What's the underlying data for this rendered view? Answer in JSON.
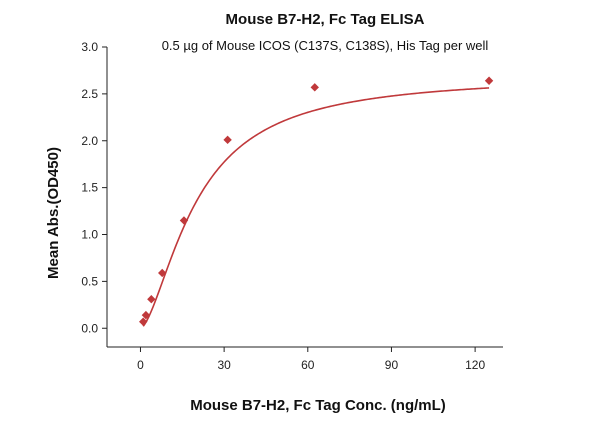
{
  "chart_data": {
    "type": "scatter",
    "title": "Mouse B7-H2, Fc Tag ELISA",
    "subtitle": "0.5 µg of Mouse ICOS (C137S, C138S), His Tag per well",
    "xlabel": "Mouse B7-H2, Fc Tag Conc. (ng/mL)",
    "ylabel": "Mean Abs.(OD450)",
    "xlim": [
      -12,
      130
    ],
    "ylim": [
      -0.2,
      3.0
    ],
    "x_ticks": [
      0,
      30,
      60,
      90,
      120
    ],
    "y_ticks": [
      0.0,
      0.5,
      1.0,
      1.5,
      2.0,
      2.5,
      3.0
    ],
    "x_tick_labels": [
      "0",
      "30",
      "60",
      "90",
      "120"
    ],
    "y_tick_labels": [
      "0.0",
      "0.5",
      "1.0",
      "1.5",
      "2.0",
      "2.5",
      "3.0"
    ],
    "grid": false,
    "legend": "none",
    "series": [
      {
        "x": [
          0.98,
          1.95,
          3.9,
          7.8,
          15.6,
          31.25,
          62.5,
          125
        ],
        "y": [
          0.07,
          0.14,
          0.31,
          0.59,
          1.15,
          2.01,
          2.57,
          2.64
        ],
        "marker": "diamond",
        "color": "#c0393b"
      }
    ],
    "fit_curve": {
      "type": "4PL",
      "bottom": 0.0,
      "top": 2.7,
      "ec50": 20.0,
      "hill": 1.6,
      "color": "#c0393b"
    }
  }
}
